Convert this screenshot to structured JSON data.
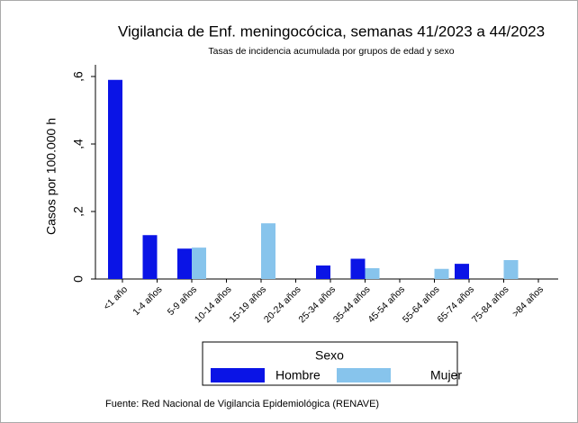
{
  "chart_data": {
    "type": "bar",
    "title": "Vigilancia de Enf. meningocócica, semanas 41/2023 a 44/2023",
    "subtitle": "Tasas de incidencia acumulada por grupos de edad y sexo",
    "y_label": "Casos por 100.000 h",
    "categories": [
      "<1 año",
      "1-4 años",
      "5-9 años",
      "10-14 años",
      "15-19 años",
      "20-24 años",
      "25-34 años",
      "35-44 años",
      "45-54 años",
      "55-64 años",
      "65-74 años",
      "75-84 años",
      ">84 años"
    ],
    "series": [
      {
        "name": "Hombre",
        "color": "#0a14e6",
        "values": [
          0.59,
          0.13,
          0.09,
          0,
          0,
          0,
          0.04,
          0.06,
          0,
          0,
          0.045,
          0,
          0
        ]
      },
      {
        "name": "Mujer",
        "color": "#87c4ec",
        "values": [
          0,
          0,
          0.093,
          0,
          0.165,
          0,
          0,
          0.032,
          0,
          0.03,
          0,
          0.056,
          0
        ]
      }
    ],
    "ylim": [
      0,
      0.6
    ],
    "yticks": [
      0,
      {
        "value": 0.2,
        "label": ",2"
      },
      {
        "value": 0.4,
        "label": ",4"
      },
      {
        "value": 0.6,
        "label": ",6"
      }
    ],
    "legend_title": "Sexo",
    "source": "Fuente: Red Nacional de Vigilancia Epidemiológica (RENAVE)"
  }
}
